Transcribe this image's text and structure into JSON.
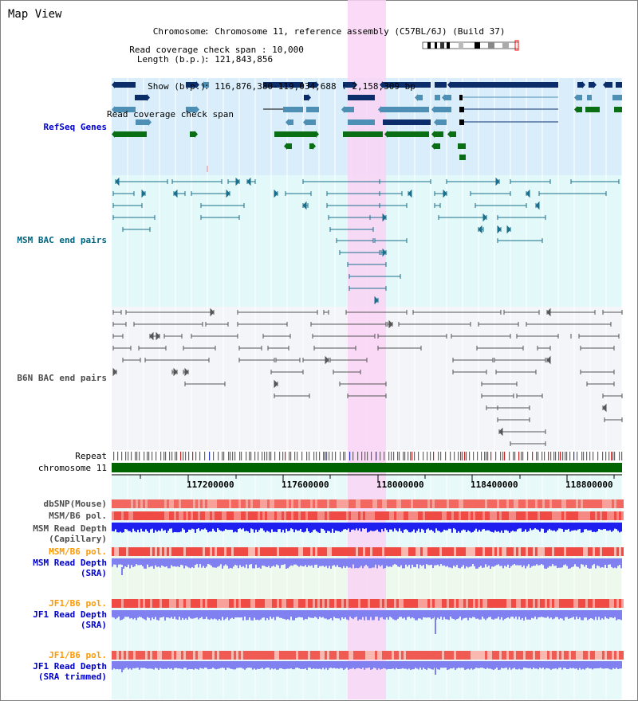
{
  "title": "Map View",
  "info": {
    "chromosome_key": "Chromosome",
    "chromosome_val": "Chromosome 11, reference assembly (C57BL/6J) (Build 37)",
    "length_key": "Length (b.p.)",
    "length_val": "121,843,856",
    "show_key": "Show (b.p.)",
    "show_val": "116,876,380-119,034,688 : 2,158,309 bp",
    "coverage_key": "Read coverage check span",
    "coverage_val": "10,000"
  },
  "tracks": {
    "refseq": "RefSeq Genes",
    "msm_bac": "MSM BAC end pairs",
    "b6n_bac": "B6N BAC end pairs",
    "repeat": "Repeat",
    "chromosome": "chromosome 11",
    "dbsnp": "dbSNP(Mouse)",
    "msm_b6_pol_1": "MSM/B6 pol.",
    "msm_read_depth_cap_1": "MSM Read Depth",
    "msm_read_depth_cap_2": "(Capillary)",
    "msm_b6_pol_2": "MSM/B6 pol.",
    "msm_read_depth_sra_1": "MSM Read Depth",
    "msm_read_depth_sra_2": "(SRA)",
    "jf1_b6_pol_1": "JF1/B6 pol.",
    "jf1_read_depth_1": "JF1 Read Depth",
    "jf1_read_depth_2": "(SRA)",
    "jf1_b6_pol_2": "JF1/B6 pol.",
    "jf1_read_depth_trim_1": "JF1 Read Depth",
    "jf1_read_depth_trim_2": "(SRA trimmed)"
  },
  "axis_ticks": [
    "117200000",
    "117600000",
    "118000000",
    "118400000",
    "118800000"
  ],
  "colors": {
    "refseq_label": "#0000cc",
    "msm_bac_label": "#006680",
    "b6n_bac_label": "#4d4d4d",
    "pol_label": "#ff9900",
    "highlight": "#f9d4f4",
    "refseq_bg": "#d9eefa",
    "msm_bg": "#e3f8f8",
    "b6n_bg": "#f3f5f8",
    "chromosome_bar": "#006400"
  }
}
